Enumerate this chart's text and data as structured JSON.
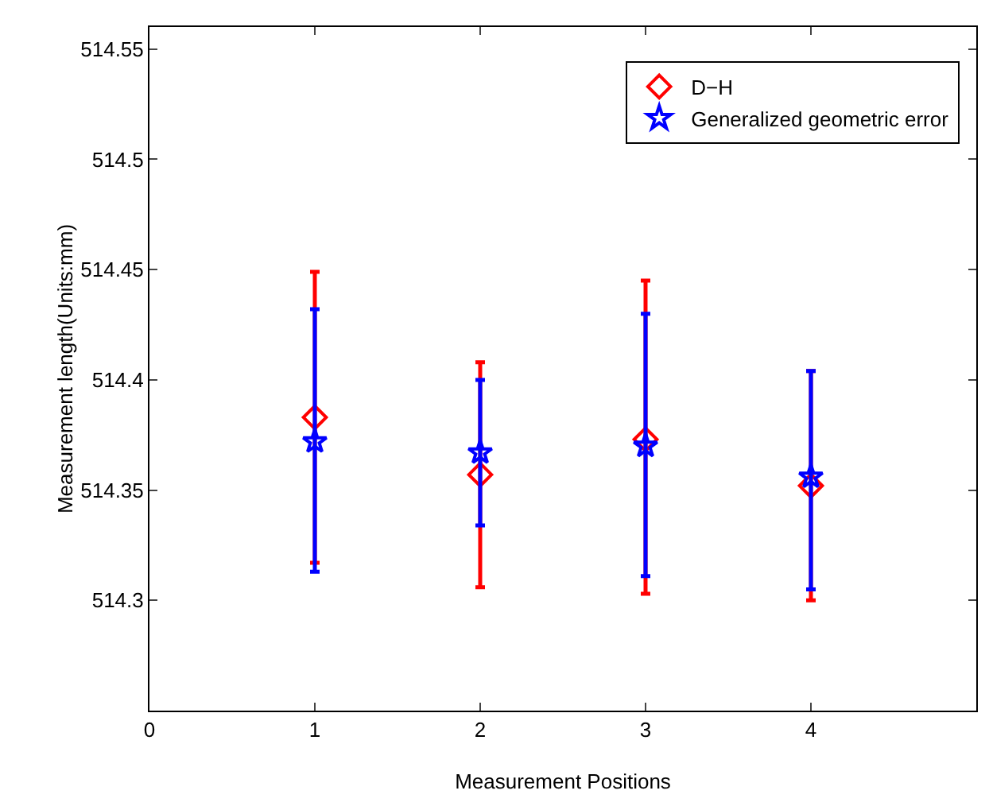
{
  "chart_data": {
    "type": "scatter",
    "xlabel": "Measurement Positions",
    "ylabel": "Measurement length(Units:mm)",
    "x": [
      1,
      2,
      3,
      4
    ],
    "series": [
      {
        "name": "D−H",
        "color": "#ff0000",
        "marker": "diamond",
        "values": [
          514.383,
          514.357,
          514.373,
          514.352
        ],
        "errors": [
          [
            514.317,
            514.449
          ],
          [
            514.306,
            514.408
          ],
          [
            514.303,
            514.445
          ],
          [
            514.3,
            514.404
          ]
        ]
      },
      {
        "name": "Generalized geometric error",
        "color": "#0000ff",
        "marker": "star",
        "values": [
          514.372,
          514.367,
          514.37,
          514.356
        ],
        "errors": [
          [
            514.313,
            514.432
          ],
          [
            514.334,
            514.4
          ],
          [
            514.311,
            514.43
          ],
          [
            514.305,
            514.404
          ]
        ]
      }
    ],
    "xlim": [
      0,
      5
    ],
    "xticks": [
      0,
      1,
      2,
      3,
      4
    ],
    "ylim": [
      514.25,
      514.56
    ],
    "yticks": [
      514.3,
      514.35,
      514.4,
      514.45,
      514.5,
      514.55
    ],
    "grid": false,
    "legend": "top right"
  }
}
